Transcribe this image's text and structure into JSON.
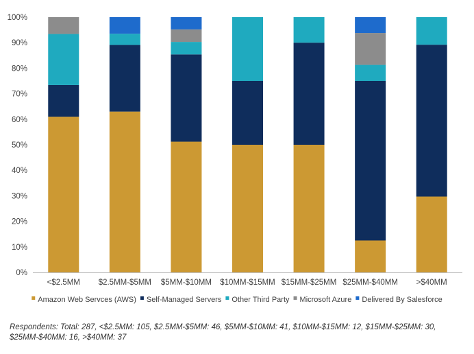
{
  "chart_data": {
    "type": "bar",
    "stacked": true,
    "title": "",
    "xlabel": "",
    "ylabel": "",
    "ylim": [
      0,
      100
    ],
    "y_tick_labels": [
      "0%",
      "10%",
      "20%",
      "30%",
      "40%",
      "50%",
      "60%",
      "70%",
      "80%",
      "90%",
      "100%"
    ],
    "categories": [
      "<$2.5MM",
      "$2.5MM-$5MM",
      "$5MM-$10MM",
      "$10MM-$15MM",
      "$15MM-$25MM",
      "$25MM-$40MM",
      ">$40MM"
    ],
    "series": [
      {
        "name": "Amazon Web Servces (AWS)",
        "color": "#CC9933",
        "values": [
          61,
          63,
          51.2,
          50,
          50,
          12.5,
          29.7
        ]
      },
      {
        "name": "Self-Managed Servers",
        "color": "#0F2D5C",
        "values": [
          12.4,
          26.1,
          34.2,
          25,
          40,
          62.5,
          59.5
        ]
      },
      {
        "name": "Other Third Party",
        "color": "#1FAABF",
        "values": [
          20,
          4.4,
          4.9,
          25,
          10,
          6.3,
          10.8
        ]
      },
      {
        "name": "Microsoft Azure",
        "color": "#8C8C8C",
        "values": [
          6.6,
          0,
          4.9,
          0,
          0,
          12.5,
          0
        ]
      },
      {
        "name": "Delivered By Salesforce",
        "color": "#1E6BCC",
        "values": [
          0,
          6.5,
          4.8,
          0,
          0,
          6.2,
          0
        ]
      }
    ],
    "grid": false,
    "legend_position": "bottom"
  },
  "footnote": "Respondents: Total: 287, <$2.5MM: 105, $2.5MM-$5MM: 46, $5MM-$10MM: 41, $10MM-$15MM: 12, $15MM-$25MM: 30, $25MM-$40MM: 16, >$40MM: 37"
}
